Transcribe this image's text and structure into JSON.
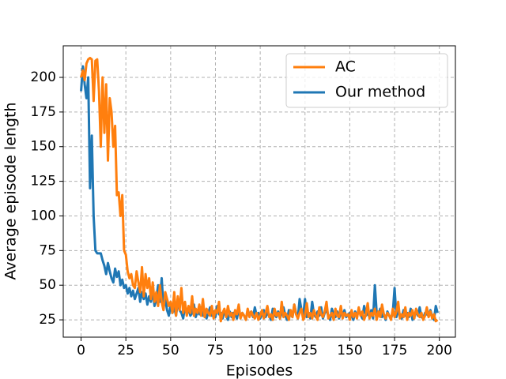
{
  "chart_data": {
    "type": "line",
    "xlabel": "Episodes",
    "ylabel": "Average episode length",
    "x": [
      0,
      1,
      2,
      3,
      4,
      5,
      6,
      7,
      8,
      9,
      10,
      11,
      12,
      13,
      14,
      15,
      16,
      17,
      18,
      19,
      20,
      21,
      22,
      23,
      24,
      25,
      26,
      27,
      28,
      29,
      30,
      31,
      32,
      33,
      34,
      35,
      36,
      37,
      38,
      39,
      40,
      41,
      42,
      43,
      44,
      45,
      46,
      47,
      48,
      49,
      50,
      51,
      52,
      53,
      54,
      55,
      56,
      57,
      58,
      59,
      60,
      61,
      62,
      63,
      64,
      65,
      66,
      67,
      68,
      69,
      70,
      71,
      72,
      73,
      74,
      75,
      76,
      77,
      78,
      79,
      80,
      81,
      82,
      83,
      84,
      85,
      86,
      87,
      88,
      89,
      90,
      91,
      92,
      93,
      94,
      95,
      96,
      97,
      98,
      99,
      100,
      101,
      102,
      103,
      104,
      105,
      106,
      107,
      108,
      109,
      110,
      111,
      112,
      113,
      114,
      115,
      116,
      117,
      118,
      119,
      120,
      121,
      122,
      123,
      124,
      125,
      126,
      127,
      128,
      129,
      130,
      131,
      132,
      133,
      134,
      135,
      136,
      137,
      138,
      139,
      140,
      141,
      142,
      143,
      144,
      145,
      146,
      147,
      148,
      149,
      150,
      151,
      152,
      153,
      154,
      155,
      156,
      157,
      158,
      159,
      160,
      161,
      162,
      163,
      164,
      165,
      166,
      167,
      168,
      169,
      170,
      171,
      172,
      173,
      174,
      175,
      176,
      177,
      178,
      179,
      180,
      181,
      182,
      183,
      184,
      185,
      186,
      187,
      188,
      189,
      190,
      191,
      192,
      193,
      194,
      195,
      196,
      197,
      198,
      199
    ],
    "series": [
      {
        "name": "AC",
        "color": "#ff7f0e",
        "values": [
          200,
          205,
          198,
          210,
          213,
          214,
          213,
          183,
          212,
          213,
          190,
          150,
          200,
          160,
          195,
          140,
          185,
          175,
          150,
          165,
          115,
          117,
          100,
          115,
          75,
          72,
          60,
          55,
          58,
          50,
          48,
          60,
          52,
          45,
          63,
          42,
          58,
          48,
          55,
          40,
          52,
          38,
          45,
          35,
          50,
          38,
          32,
          45,
          40,
          35,
          38,
          30,
          45,
          28,
          42,
          32,
          48,
          30,
          38,
          28,
          35,
          30,
          42,
          28,
          33,
          30,
          36,
          28,
          40,
          27,
          33,
          30,
          28,
          35,
          26,
          32,
          30,
          38,
          24,
          30,
          33,
          27,
          35,
          28,
          30,
          25,
          32,
          29,
          36,
          26,
          30,
          28,
          25,
          33,
          27,
          31,
          28,
          26,
          30,
          25,
          28,
          32,
          26,
          30,
          35,
          27,
          29,
          25,
          33,
          28,
          30,
          26,
          38,
          27,
          30,
          28,
          25,
          32,
          27,
          36,
          29,
          26,
          30,
          33,
          25,
          28,
          37,
          27,
          30,
          26,
          32,
          28,
          25,
          34,
          29,
          27,
          31,
          38,
          26,
          28,
          30,
          25,
          33,
          28,
          27,
          35,
          26,
          30,
          28,
          29,
          25,
          32,
          27,
          30,
          26,
          34,
          28,
          31,
          25,
          29,
          37,
          26,
          30,
          28,
          33,
          25,
          31,
          27,
          36,
          29,
          26,
          30,
          28,
          25,
          33,
          27,
          31,
          38,
          26,
          29,
          27,
          34,
          25,
          30,
          28,
          32,
          26,
          33,
          29,
          27,
          30,
          25,
          28,
          34,
          27,
          31,
          26,
          29,
          24,
          25
        ]
      },
      {
        "name": "Our method",
        "color": "#1f77b4",
        "values": [
          190,
          208,
          195,
          185,
          200,
          120,
          158,
          100,
          75,
          73,
          73,
          73,
          68,
          64,
          58,
          66,
          60,
          55,
          52,
          62,
          56,
          60,
          50,
          54,
          48,
          50,
          44,
          48,
          42,
          46,
          40,
          44,
          48,
          38,
          45,
          40,
          44,
          36,
          42,
          38,
          46,
          35,
          40,
          50,
          38,
          55,
          34,
          40,
          32,
          28,
          36,
          30,
          34,
          28,
          38,
          32,
          30,
          26,
          35,
          29,
          33,
          28,
          30,
          36,
          27,
          31,
          29,
          34,
          28,
          32,
          26,
          30,
          34,
          28,
          31,
          27,
          35,
          29,
          30,
          26,
          32,
          28,
          25,
          31,
          27,
          30,
          29,
          26,
          33,
          27,
          30,
          28,
          25,
          32,
          29,
          31,
          27,
          34,
          28,
          30,
          26,
          29,
          32,
          27,
          30,
          28,
          25,
          33,
          29,
          27,
          31,
          26,
          30,
          34,
          28,
          25,
          32,
          29,
          27,
          36,
          30,
          26,
          40,
          32,
          28,
          40,
          27,
          30,
          26,
          38,
          29,
          27,
          31,
          28,
          34,
          26,
          30,
          32,
          28,
          25,
          33,
          29,
          27,
          31,
          26,
          30,
          28,
          32,
          27,
          29,
          30,
          28,
          25,
          31,
          27,
          33,
          29,
          26,
          35,
          28,
          30,
          27,
          32,
          26,
          50,
          30,
          28,
          33,
          27,
          29,
          25,
          31,
          28,
          26,
          30,
          48,
          27,
          31,
          29,
          26,
          32,
          28,
          30,
          27,
          33,
          25,
          29,
          31,
          28,
          34,
          27,
          26,
          30,
          29,
          28,
          32,
          27,
          25,
          35,
          30
        ]
      }
    ],
    "xlim": [
      -9.95,
      208.95
    ],
    "xticks": [
      0,
      25,
      50,
      75,
      100,
      125,
      150,
      175,
      200
    ],
    "ylim": [
      12.5,
      222.8
    ],
    "yticks": [
      25,
      50,
      75,
      100,
      125,
      150,
      175,
      200
    ],
    "grid": true,
    "legend": "upper right"
  }
}
